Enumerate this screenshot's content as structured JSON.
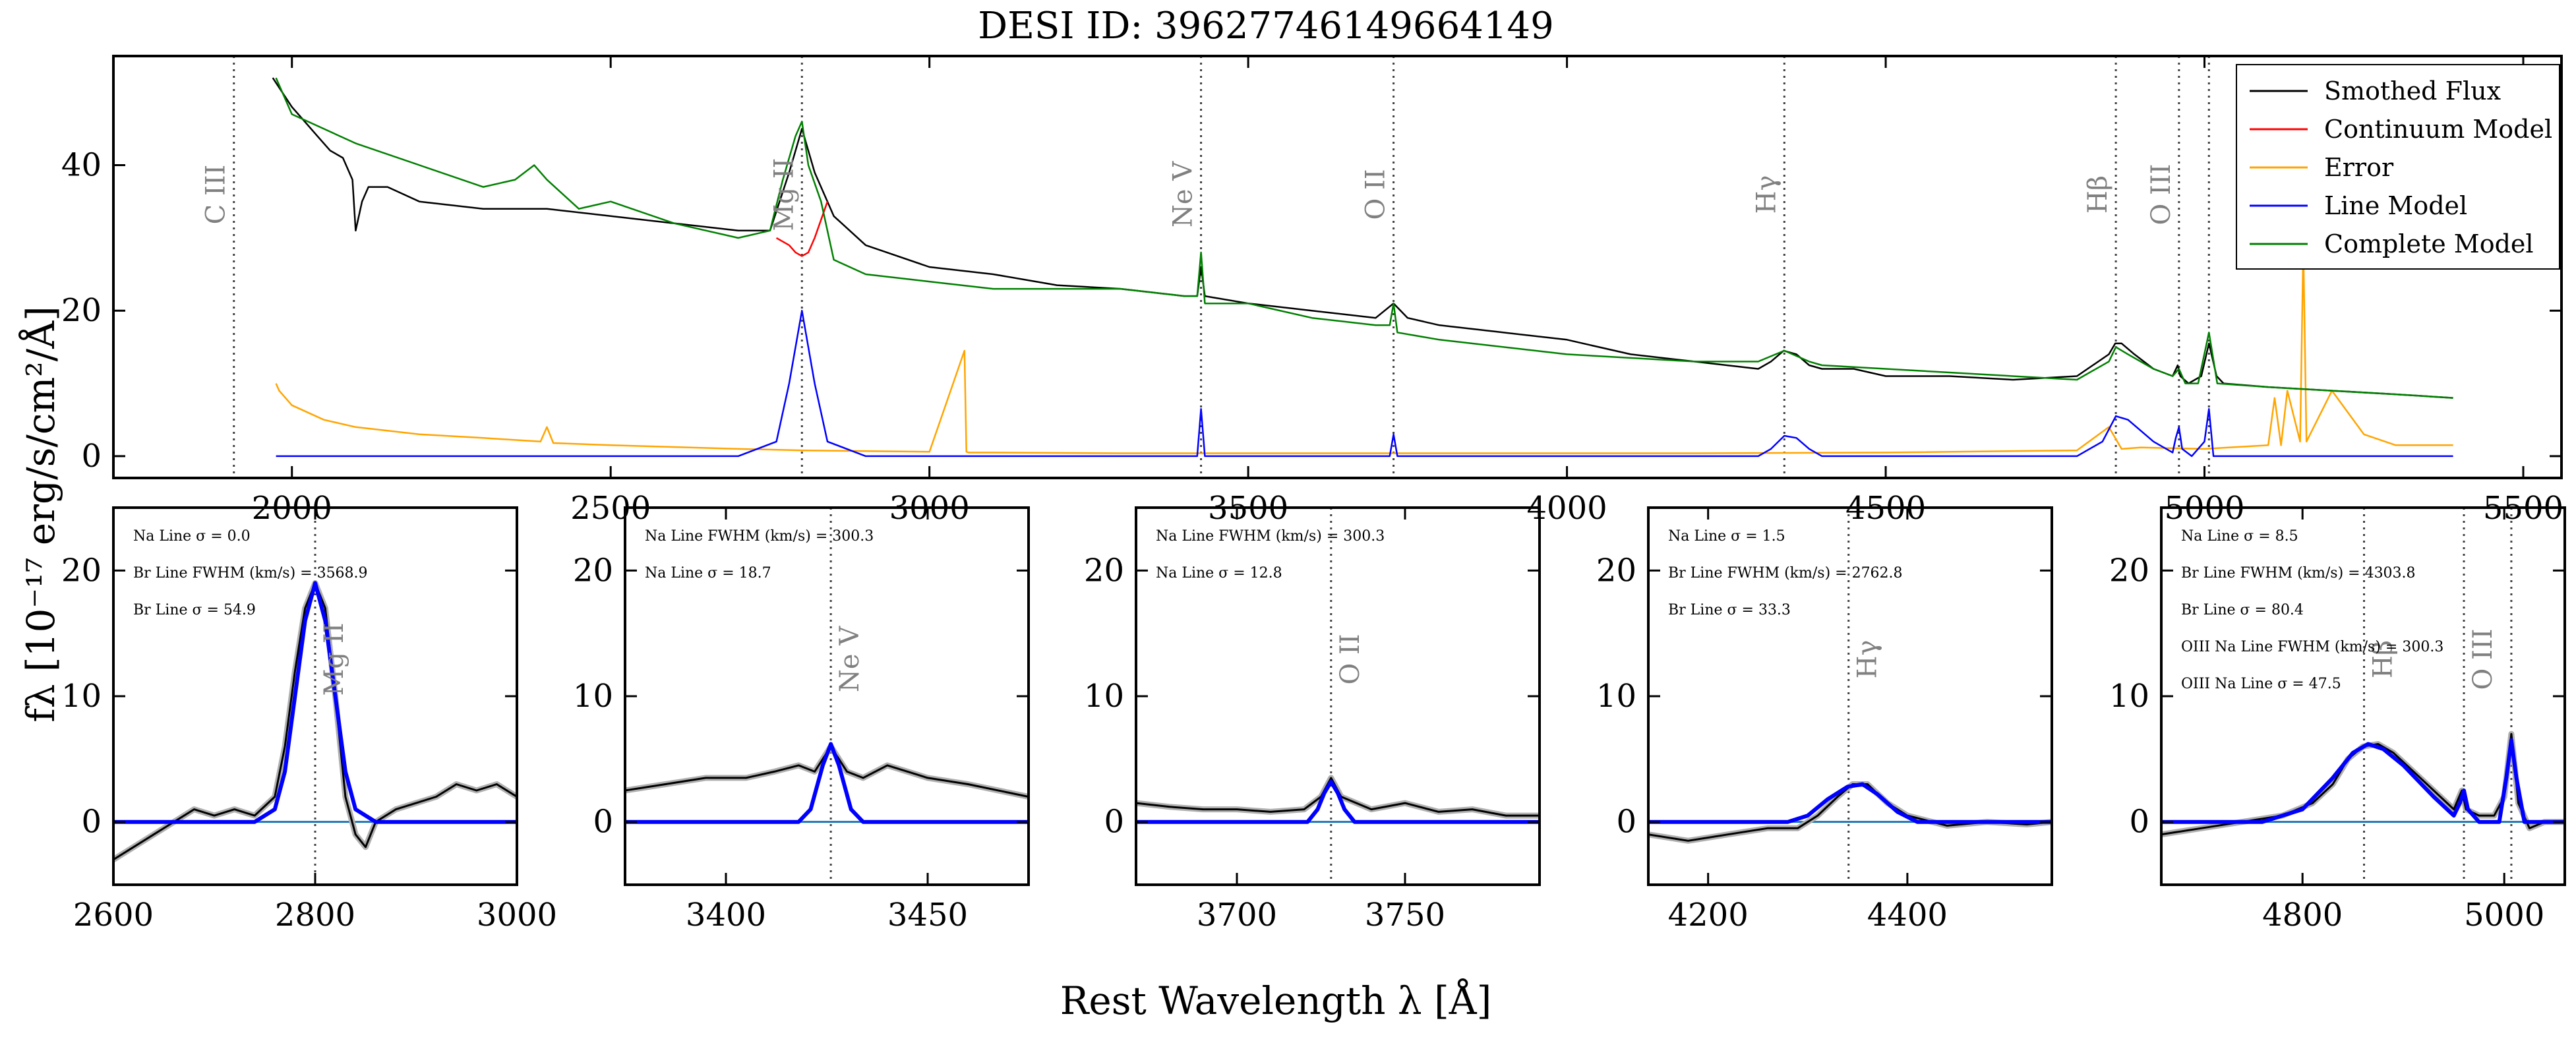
{
  "figure": {
    "title": "DESI ID: 39627746149664149",
    "xlabel": "Rest Wavelength λ [Å]",
    "ylabel": "fλ  [10⁻¹⁷ erg/s/cm²/Å]"
  },
  "colors": {
    "flux": "#000000",
    "continuum": "#ff0000",
    "error": "#ffa500",
    "line_model": "#0000ff",
    "complete_model": "#008000",
    "zero_line": "#1f77b4",
    "raw_flux": "#b0b0b0",
    "marker": "#404040",
    "marker_label": "#808080"
  },
  "chart_data": [
    {
      "type": "line",
      "panel": "main",
      "xlim": [
        1720,
        5560
      ],
      "ylim": [
        -3,
        55
      ],
      "xticks": [
        2000,
        2500,
        3000,
        3500,
        4000,
        4500,
        5000,
        5500
      ],
      "yticks": [
        0,
        20,
        40
      ],
      "legend": {
        "position": "top-right",
        "entries": [
          "Smothed Flux",
          "Continuum Model",
          "Error",
          "Line Model",
          "Complete Model"
        ]
      },
      "line_markers": [
        {
          "label": "C III",
          "x": 1909
        },
        {
          "label": "Mg II",
          "x": 2800
        },
        {
          "label": "Ne V",
          "x": 3426
        },
        {
          "label": "O II",
          "x": 3728
        },
        {
          "label": "Hγ",
          "x": 4341
        },
        {
          "label": "Hβ",
          "x": 4861
        },
        {
          "label": "O III",
          "x": 4960
        },
        {
          "label": "",
          "x": 5007
        }
      ],
      "series": [
        {
          "name": "Smothed Flux",
          "x": [
            1970,
            1985,
            2000,
            2020,
            2040,
            2060,
            2080,
            2095,
            2100,
            2110,
            2120,
            2150,
            2200,
            2300,
            2400,
            2500,
            2600,
            2700,
            2750,
            2780,
            2800,
            2820,
            2850,
            2900,
            3000,
            3100,
            3200,
            3300,
            3400,
            3420,
            3426,
            3432,
            3500,
            3600,
            3700,
            3728,
            3750,
            3800,
            3900,
            4000,
            4050,
            4100,
            4200,
            4300,
            4320,
            4340,
            4360,
            4380,
            4400,
            4450,
            4500,
            4600,
            4700,
            4800,
            4850,
            4860,
            4870,
            4890,
            4920,
            4950,
            4958,
            4962,
            4975,
            4995,
            5007,
            5019,
            5030,
            5100,
            5200,
            5300,
            5390
          ],
          "y": [
            52,
            50,
            48,
            46,
            44,
            42,
            41,
            38,
            31,
            35,
            37,
            37,
            35,
            34,
            34,
            33,
            32,
            31,
            31,
            39,
            45,
            39,
            33,
            29,
            26,
            25,
            23.5,
            23,
            22,
            22,
            26,
            22,
            21,
            20,
            19,
            21,
            19,
            18,
            17,
            16,
            15,
            14,
            13,
            12,
            13,
            14.5,
            14,
            12.5,
            12,
            12,
            11,
            11,
            10.5,
            11,
            14,
            15.5,
            15.5,
            14,
            12,
            11,
            12.5,
            11,
            10,
            11,
            15.5,
            11,
            10,
            9.5,
            9,
            8.5,
            8
          ]
        },
        {
          "name": "Continuum Model",
          "x": [
            2760,
            2780,
            2790,
            2800,
            2810,
            2820,
            2840
          ],
          "y": [
            30,
            29,
            28,
            27.5,
            28,
            30,
            35
          ]
        },
        {
          "name": "Error",
          "x": [
            1975,
            1980,
            2000,
            2050,
            2100,
            2200,
            2300,
            2390,
            2400,
            2410,
            2500,
            2700,
            2800,
            3000,
            3055,
            3058,
            3062,
            3100,
            3300,
            3500,
            3700,
            4000,
            4200,
            4500,
            4800,
            4850,
            4870,
            4900,
            5000,
            5100,
            5110,
            5120,
            5130,
            5150,
            5155,
            5160,
            5200,
            5250,
            5300,
            5390
          ],
          "y": [
            10,
            9,
            7,
            5,
            4,
            3,
            2.5,
            2,
            4,
            1.8,
            1.5,
            1,
            0.8,
            0.6,
            14.5,
            0.6,
            0.5,
            0.5,
            0.4,
            0.4,
            0.4,
            0.4,
            0.4,
            0.5,
            0.8,
            4,
            1,
            1.2,
            1,
            1.5,
            8,
            1.5,
            9,
            2,
            29,
            2,
            9,
            3,
            1.5,
            1.5
          ]
        },
        {
          "name": "Line Model",
          "x": [
            1975,
            2700,
            2760,
            2780,
            2800,
            2820,
            2840,
            2900,
            3400,
            3420,
            3426,
            3432,
            3450,
            3700,
            3722,
            3728,
            3734,
            3760,
            4300,
            4320,
            4341,
            4360,
            4380,
            4400,
            4800,
            4840,
            4861,
            4880,
            4920,
            4950,
            4955,
            4960,
            4965,
            4980,
            5000,
            5007,
            5014,
            5030,
            5390
          ],
          "y": [
            0,
            0,
            2,
            10,
            20,
            10,
            2,
            0,
            0,
            0,
            6.5,
            0,
            0,
            0,
            0,
            3,
            0,
            0,
            0,
            1,
            2.8,
            2.5,
            1,
            0,
            0,
            2,
            5.5,
            5,
            2,
            0.5,
            2.5,
            4,
            1,
            0,
            2,
            6.5,
            0,
            0,
            0
          ]
        },
        {
          "name": "Complete Model",
          "x": [
            1975,
            2000,
            2100,
            2200,
            2300,
            2350,
            2380,
            2400,
            2450,
            2500,
            2600,
            2700,
            2750,
            2770,
            2790,
            2800,
            2810,
            2830,
            2850,
            2900,
            3000,
            3100,
            3200,
            3300,
            3400,
            3420,
            3426,
            3432,
            3500,
            3600,
            3700,
            3722,
            3728,
            3734,
            3800,
            4000,
            4200,
            4300,
            4341,
            4380,
            4400,
            4600,
            4800,
            4850,
            4861,
            4880,
            4920,
            4950,
            4960,
            4970,
            4990,
            5007,
            5020,
            5100,
            5200,
            5300,
            5390
          ],
          "y": [
            52,
            47,
            43,
            40,
            37,
            38,
            40,
            38,
            34,
            35,
            32,
            30,
            31,
            38,
            44,
            46,
            40,
            35,
            27,
            25,
            24,
            23,
            23,
            23,
            22,
            22,
            28,
            21,
            21,
            19,
            18,
            18,
            21,
            17,
            16,
            14,
            13,
            13,
            14.5,
            13,
            12.5,
            11.5,
            10.5,
            13,
            15,
            14,
            12,
            11,
            12,
            10,
            10,
            17,
            10,
            9.5,
            9,
            8.5,
            8
          ]
        }
      ]
    },
    {
      "type": "line",
      "panel": "mg2",
      "xlim": [
        2600,
        3000
      ],
      "ylim": [
        -5,
        25
      ],
      "xticks": [
        2600,
        2800,
        3000
      ],
      "yticks": [
        0,
        10,
        20
      ],
      "line_markers": [
        {
          "label": "Mg II",
          "x": 2800
        }
      ],
      "annotations": [
        "Na Line σ = 0.0",
        "Br Line FWHM (km/s) = 3568.9",
        "Br Line σ = 54.9"
      ],
      "series": [
        {
          "name": "data",
          "x": [
            2600,
            2620,
            2640,
            2660,
            2680,
            2700,
            2720,
            2740,
            2760,
            2770,
            2780,
            2790,
            2800,
            2810,
            2820,
            2830,
            2840,
            2850,
            2860,
            2880,
            2900,
            2920,
            2940,
            2960,
            2980,
            3000
          ],
          "y": [
            -3,
            -2,
            -1,
            0,
            1,
            0.5,
            1,
            0.5,
            2,
            6,
            12,
            17,
            19,
            17,
            10,
            2,
            -1,
            -2,
            0,
            1,
            1.5,
            2,
            3,
            2.5,
            3,
            2
          ]
        },
        {
          "name": "model",
          "x": [
            2600,
            2740,
            2760,
            2770,
            2780,
            2790,
            2800,
            2810,
            2820,
            2830,
            2840,
            2860,
            3000
          ],
          "y": [
            0,
            0,
            1,
            4,
            10,
            16,
            19,
            16,
            10,
            4,
            1,
            0,
            0
          ]
        }
      ]
    },
    {
      "type": "line",
      "panel": "ne5",
      "xlim": [
        3375,
        3475
      ],
      "ylim": [
        -5,
        25
      ],
      "xticks": [
        3400,
        3450
      ],
      "yticks": [
        0,
        10,
        20
      ],
      "line_markers": [
        {
          "label": "Ne V",
          "x": 3426
        }
      ],
      "annotations": [
        "Na Line FWHM (km/s) = 300.3",
        "Na Line σ = 18.7"
      ],
      "series": [
        {
          "name": "data",
          "x": [
            3375,
            3385,
            3395,
            3405,
            3412,
            3418,
            3422,
            3426,
            3430,
            3434,
            3440,
            3450,
            3460,
            3475
          ],
          "y": [
            2.5,
            3,
            3.5,
            3.5,
            4,
            4.5,
            4,
            6,
            4,
            3.5,
            4.5,
            3.5,
            3,
            2
          ]
        },
        {
          "name": "model",
          "x": [
            3375,
            3418,
            3421,
            3424,
            3426,
            3428,
            3431,
            3434,
            3475
          ],
          "y": [
            0,
            0,
            1,
            4.5,
            6.2,
            4.5,
            1,
            0,
            0
          ]
        }
      ]
    },
    {
      "type": "line",
      "panel": "o2",
      "xlim": [
        3670,
        3790
      ],
      "ylim": [
        -5,
        25
      ],
      "xticks": [
        3700,
        3750
      ],
      "yticks": [
        0,
        10,
        20
      ],
      "line_markers": [
        {
          "label": "O II",
          "x": 3728
        }
      ],
      "annotations": [
        "Na Line FWHM (km/s) = 300.3",
        "Na Line σ = 12.8"
      ],
      "series": [
        {
          "name": "data",
          "x": [
            3670,
            3680,
            3690,
            3700,
            3710,
            3720,
            3725,
            3728,
            3731,
            3740,
            3750,
            3760,
            3770,
            3780,
            3790
          ],
          "y": [
            1.5,
            1.2,
            1,
            1,
            0.8,
            1,
            2,
            3.5,
            2,
            1,
            1.5,
            0.8,
            1,
            0.5,
            0.5
          ]
        },
        {
          "name": "model",
          "x": [
            3670,
            3721,
            3724,
            3726,
            3728,
            3730,
            3732,
            3735,
            3790
          ],
          "y": [
            0,
            0,
            1,
            2.3,
            3.2,
            2.3,
            1,
            0,
            0
          ]
        }
      ]
    },
    {
      "type": "line",
      "panel": "hgamma",
      "xlim": [
        4140,
        4545
      ],
      "ylim": [
        -5,
        25
      ],
      "xticks": [
        4200,
        4400
      ],
      "yticks": [
        0,
        10,
        20
      ],
      "line_markers": [
        {
          "label": "Hγ",
          "x": 4341
        }
      ],
      "annotations": [
        "Na Line σ = 1.5",
        "Br Line FWHM (km/s) = 2762.8",
        "Br Line σ = 33.3"
      ],
      "series": [
        {
          "name": "data",
          "x": [
            4140,
            4180,
            4220,
            4260,
            4290,
            4310,
            4330,
            4345,
            4360,
            4380,
            4400,
            4440,
            4480,
            4520,
            4545
          ],
          "y": [
            -1,
            -1.5,
            -1,
            -0.5,
            -0.5,
            0.5,
            2,
            3,
            3,
            1.5,
            0.5,
            -0.3,
            0,
            -0.2,
            0
          ]
        },
        {
          "name": "model",
          "x": [
            4140,
            4280,
            4300,
            4320,
            4340,
            4355,
            4370,
            4390,
            4410,
            4545
          ],
          "y": [
            0,
            0,
            0.5,
            1.8,
            2.8,
            3,
            2.2,
            0.8,
            0,
            0
          ]
        }
      ]
    },
    {
      "type": "line",
      "panel": "hbeta_o3",
      "xlim": [
        4660,
        5060
      ],
      "ylim": [
        -5,
        25
      ],
      "xticks": [
        4800,
        5000
      ],
      "yticks": [
        0,
        10,
        20
      ],
      "line_markers": [
        {
          "label": "Hβ",
          "x": 4861
        },
        {
          "label": "O III",
          "x": 4960
        },
        {
          "label": "",
          "x": 5007
        }
      ],
      "annotations": [
        "Na Line σ = 8.5",
        "Br Line FWHM (km/s) = 4303.8",
        "Br Line σ = 80.4",
        "OIII Na Line FWHM (km/s) = 300.3",
        "OIII Na Line σ = 47.5"
      ],
      "series": [
        {
          "name": "data",
          "x": [
            4660,
            4700,
            4740,
            4780,
            4810,
            4830,
            4845,
            4860,
            4875,
            4890,
            4910,
            4930,
            4950,
            4958,
            4962,
            4975,
            4990,
            5000,
            5007,
            5014,
            5025,
            5040,
            5060
          ],
          "y": [
            -1,
            -0.5,
            0,
            0.5,
            1.5,
            3,
            5,
            6,
            6.2,
            5.5,
            4,
            2.5,
            1,
            2.5,
            1,
            0.5,
            0.5,
            2,
            7,
            1.5,
            -0.5,
            0,
            0
          ]
        },
        {
          "name": "model",
          "x": [
            4660,
            4760,
            4800,
            4830,
            4850,
            4865,
            4880,
            4900,
            4930,
            4950,
            4956,
            4960,
            4964,
            4975,
            4995,
            5002,
            5007,
            5012,
            5020,
            5060
          ],
          "y": [
            0,
            0,
            1,
            3.5,
            5.5,
            6.2,
            5.8,
            4.5,
            2,
            0.5,
            1.5,
            2.5,
            1,
            0,
            0,
            3.5,
            6.5,
            3.5,
            0,
            0
          ]
        }
      ]
    }
  ]
}
